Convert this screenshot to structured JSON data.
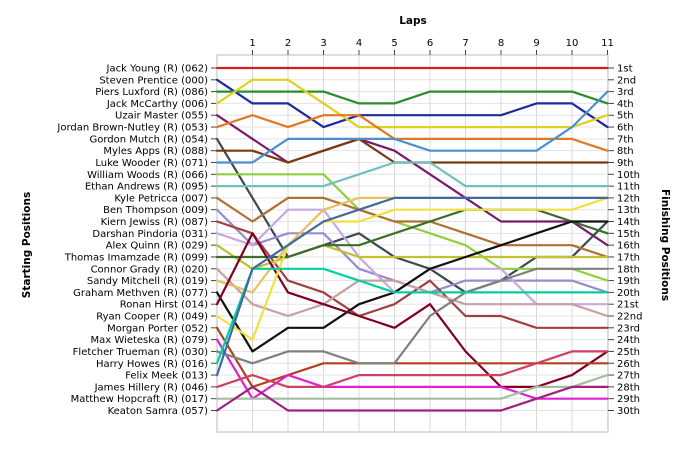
{
  "chart_data": {
    "type": "line",
    "subtype": "lap-chart",
    "title": "Laps",
    "ylabel_left": "Starting Positions",
    "ylabel_right": "Finishing Positions",
    "x": [
      0,
      1,
      2,
      3,
      4,
      5,
      6,
      7,
      8,
      9,
      10,
      11
    ],
    "xticks": [
      "1",
      "2",
      "3",
      "4",
      "5",
      "6",
      "7",
      "8",
      "9",
      "10",
      "11"
    ],
    "ylim": [
      1,
      30
    ],
    "y_inverted": true,
    "grid": true,
    "starting_labels": [
      "Jack Young  (R) (062)",
      "Steven Prentice (000)",
      "Piers Luxford  (R) (086)",
      "Jack McCarthy (006)",
      "Uzair Master (055)",
      "Jordan Brown-Nutley (R) (053)",
      "Gordon Mutch (R) (054)",
      "Myles Apps  (R) (088)",
      "Luke Wooder (R) (071)",
      "William Woods (R) (066)",
      "Ethan Andrews (R) (095)",
      "Kyle Petricca (007)",
      "Ben Thompson (009)",
      "Kiern Jewiss  (R) (087)",
      "Darshan Pindoria (031)",
      "Alex Quinn  (R) (029)",
      "Thomas Imamzade  (R) (099)",
      "Connor Grady (R) (020)",
      "Sandy Mitchell (R) (019)",
      "Graham Methven  (R) (077)",
      "Ronan Hirst (014)",
      "Ryan Cooper (R) (049)",
      "Morgan Porter (052)",
      "Max Wieteska (R) (079)",
      "Fletcher Trueman (R) (030)",
      "Harry Howes (R) (016)",
      "Felix Meek (013)",
      "James Hillery  (R) (046)",
      "Matthew Hopcraft (R) (017)",
      "Keaton Samra (057)"
    ],
    "finishing_labels": [
      "1st",
      "2nd",
      "3rd",
      "4th",
      "5th",
      "6th",
      "7th",
      "8th",
      "9th",
      "10th",
      "11th",
      "12th",
      "13th",
      "14th",
      "15th",
      "16th",
      "17th",
      "18th",
      "19th",
      "20th",
      "21st",
      "22nd",
      "23rd",
      "24th",
      "25th",
      "26th",
      "27th",
      "28th",
      "29th",
      "30th"
    ],
    "series": [
      {
        "color": "#cc2222",
        "values": [
          1,
          1,
          1,
          1,
          1,
          1,
          1,
          1,
          1,
          1,
          1,
          1
        ]
      },
      {
        "color": "#1f2a9e",
        "values": [
          2,
          4,
          4,
          6,
          5,
          5,
          5,
          5,
          5,
          4,
          4,
          6
        ]
      },
      {
        "color": "#2a8c2a",
        "values": [
          3,
          3,
          3,
          3,
          4,
          4,
          3,
          3,
          3,
          3,
          3,
          4
        ]
      },
      {
        "color": "#e0d020",
        "values": [
          4,
          2,
          2,
          4,
          6,
          6,
          6,
          6,
          6,
          6,
          6,
          5
        ]
      },
      {
        "color": "#7a1a6e",
        "values": [
          5,
          7,
          9,
          8,
          7,
          8,
          10,
          12,
          14,
          14,
          14,
          16
        ]
      },
      {
        "color": "#e07a20",
        "values": [
          6,
          5,
          6,
          5,
          5,
          7,
          7,
          7,
          7,
          7,
          7,
          8
        ]
      },
      {
        "color": "#3a4a50",
        "values": [
          7,
          12,
          17,
          16,
          15,
          17,
          18,
          20,
          19,
          17,
          17,
          14
        ]
      },
      {
        "color": "#7a3a10",
        "values": [
          8,
          8,
          9,
          8,
          7,
          9,
          9,
          9,
          9,
          9,
          9,
          9
        ]
      },
      {
        "color": "#4a90d0",
        "values": [
          9,
          9,
          7,
          7,
          7,
          7,
          8,
          8,
          8,
          8,
          6,
          3
        ]
      },
      {
        "color": "#8fd040",
        "values": [
          10,
          10,
          10,
          10,
          13,
          14,
          15,
          16,
          18,
          18,
          18,
          19
        ]
      },
      {
        "color": "#70c0c0",
        "values": [
          11,
          11,
          11,
          11,
          10,
          9,
          9,
          11,
          11,
          11,
          11,
          11
        ]
      },
      {
        "color": "#b07030",
        "values": [
          12,
          14,
          12,
          12,
          13,
          14,
          14,
          15,
          16,
          16,
          16,
          17
        ]
      },
      {
        "color": "#9a8ad0",
        "values": [
          13,
          16,
          15,
          15,
          18,
          19,
          20,
          19,
          19,
          19,
          19,
          20
        ]
      },
      {
        "color": "#a04040",
        "values": [
          14,
          15,
          19,
          20,
          22,
          21,
          19,
          22,
          22,
          23,
          23,
          23
        ]
      },
      {
        "color": "#c8a8e0",
        "values": [
          15,
          16,
          13,
          13,
          17,
          20,
          18,
          18,
          18,
          21,
          21,
          21
        ]
      },
      {
        "color": "#c0c030",
        "values": [
          16,
          18,
          17,
          16,
          17,
          17,
          17,
          17,
          17,
          17,
          17,
          17
        ]
      },
      {
        "color": "#3a6e2a",
        "values": [
          17,
          17,
          17,
          16,
          16,
          15,
          14,
          13,
          13,
          13,
          14,
          15
        ]
      },
      {
        "color": "#c8a0a0",
        "values": [
          18,
          21,
          22,
          21,
          19,
          19,
          20,
          21,
          21,
          21,
          21,
          22
        ]
      },
      {
        "color": "#e8c060",
        "values": [
          19,
          20,
          16,
          13,
          12,
          12,
          12,
          12,
          12,
          12,
          12,
          12
        ]
      },
      {
        "color": "#111111",
        "values": [
          20,
          25,
          23,
          23,
          21,
          20,
          18,
          17,
          16,
          15,
          14,
          14
        ]
      },
      {
        "color": "#800020",
        "values": [
          21,
          15,
          20,
          21,
          22,
          23,
          21,
          25,
          28,
          28,
          27,
          25
        ]
      },
      {
        "color": "#f0e040",
        "values": [
          22,
          24,
          16,
          14,
          14,
          13,
          13,
          13,
          13,
          13,
          13,
          12
        ]
      },
      {
        "color": "#b04020",
        "values": [
          23,
          28,
          27,
          26,
          26,
          26,
          26,
          26,
          26,
          26,
          26,
          26
        ]
      },
      {
        "color": "#e020d0",
        "values": [
          24,
          29,
          27,
          28,
          28,
          28,
          28,
          28,
          28,
          29,
          29,
          29
        ]
      },
      {
        "color": "#808080",
        "values": [
          25,
          26,
          25,
          25,
          26,
          26,
          22,
          20,
          19,
          18,
          18,
          18
        ]
      },
      {
        "color": "#00d0a0",
        "values": [
          26,
          18,
          18,
          18,
          19,
          20,
          20,
          20,
          20,
          20,
          20,
          20
        ]
      },
      {
        "color": "#406aa0",
        "values": [
          27,
          18,
          16,
          14,
          13,
          12,
          12,
          12,
          12,
          12,
          12,
          12
        ]
      },
      {
        "color": "#d04060",
        "values": [
          28,
          27,
          28,
          28,
          27,
          27,
          27,
          27,
          27,
          26,
          25,
          25
        ]
      },
      {
        "color": "#a0c0a0",
        "values": [
          29,
          29,
          29,
          29,
          29,
          29,
          29,
          29,
          29,
          28,
          28,
          27
        ]
      },
      {
        "color": "#a02080",
        "values": [
          30,
          28,
          30,
          30,
          30,
          30,
          30,
          30,
          30,
          29,
          28,
          28
        ]
      }
    ]
  }
}
